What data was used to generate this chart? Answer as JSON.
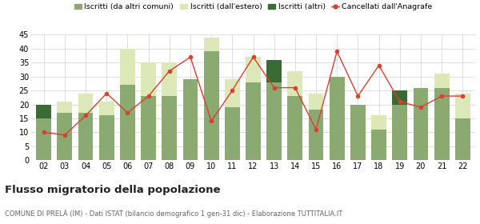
{
  "years": [
    "02",
    "03",
    "04",
    "05",
    "06",
    "07",
    "08",
    "09",
    "10",
    "11",
    "12",
    "13",
    "14",
    "15",
    "16",
    "17",
    "18",
    "19",
    "20",
    "21",
    "22"
  ],
  "iscritti_comuni": [
    15,
    17,
    17,
    16,
    27,
    23,
    23,
    29,
    39,
    19,
    28,
    28,
    23,
    18,
    30,
    20,
    11,
    20,
    26,
    26,
    15
  ],
  "iscritti_estero": [
    2,
    4,
    7,
    5,
    13,
    12,
    12,
    0,
    5,
    10,
    9,
    4,
    9,
    6,
    0,
    0,
    5,
    0,
    0,
    5,
    9
  ],
  "iscritti_altri": [
    5,
    0,
    0,
    0,
    0,
    0,
    0,
    0,
    0,
    0,
    0,
    8,
    0,
    0,
    0,
    0,
    0,
    5,
    0,
    0,
    0
  ],
  "cancellati": [
    10,
    9,
    16,
    24,
    17,
    23,
    32,
    37,
    14,
    25,
    37,
    26,
    26,
    11,
    39,
    23,
    34,
    21,
    19,
    23,
    23
  ],
  "color_comuni": "#8aaa72",
  "color_estero": "#dce8b8",
  "color_altri": "#3a6b35",
  "color_cancellati": "#d94030",
  "ylim": [
    0,
    45
  ],
  "yticks": [
    0,
    5,
    10,
    15,
    20,
    25,
    30,
    35,
    40,
    45
  ],
  "title": "Flusso migratorio della popolazione",
  "subtitle": "COMUNE DI PRELÀ (IM) - Dati ISTAT (bilancio demografico 1 gen-31 dic) - Elaborazione TUTTITALIA.IT",
  "legend_labels": [
    "Iscritti (da altri comuni)",
    "Iscritti (dall'estero)",
    "Iscritti (altri)",
    "Cancellati dall'Anagrafe"
  ],
  "bg_color": "#ffffff",
  "grid_color": "#d8d8d8"
}
